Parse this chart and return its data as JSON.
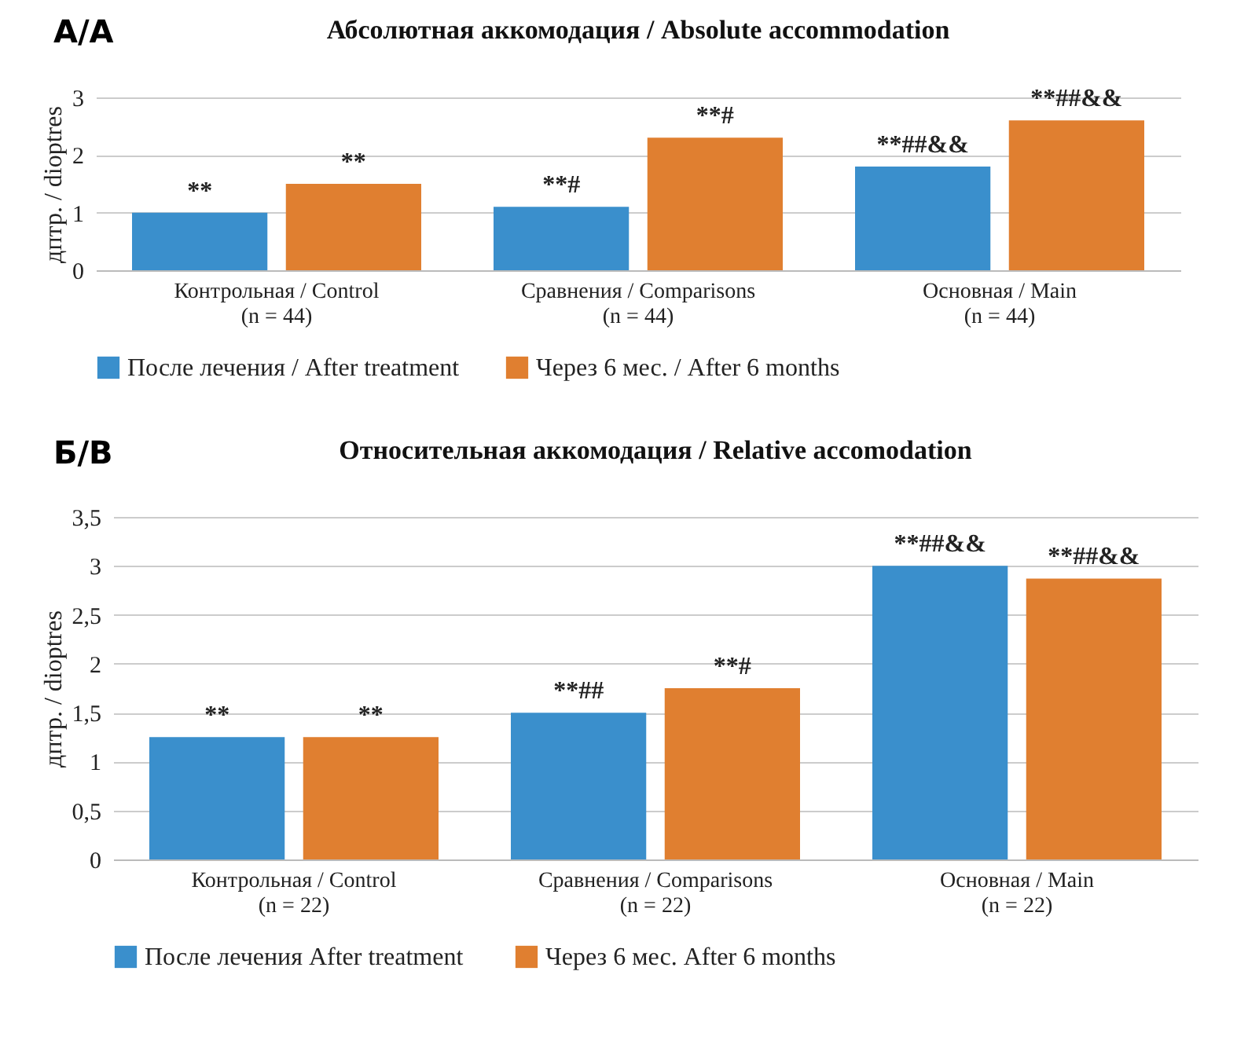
{
  "chart_data": [
    {
      "type": "bar",
      "title": "Абсолютная аккомодация / Absolute accommodation",
      "annotations": [
        "А/А"
      ],
      "ylabel": "дптр. / dioptres",
      "categories": [
        "Контрольная / Control\n(n = 44)",
        "Сравнения / Comparisons\n(n = 44)",
        "Основная / Main\n(n = 44)"
      ],
      "series": [
        {
          "name": "После лечения / After treatment",
          "color": "#3a8fcc",
          "values": [
            1.0,
            1.1,
            1.8
          ],
          "value_labels": [
            "**",
            "**#",
            "**##&&"
          ]
        },
        {
          "name": "Через 6 мес. / After 6 months",
          "color": "#e07f30",
          "values": [
            1.5,
            2.3,
            2.6
          ],
          "value_labels": [
            "**",
            "**#",
            "**##&&"
          ]
        }
      ],
      "ylim": [
        0,
        3
      ],
      "yticks": [
        0,
        1,
        2,
        3
      ],
      "grid": "y",
      "legend": "bottom"
    },
    {
      "type": "bar",
      "title": "Относительная аккомодация / Relative accomodation",
      "annotations": [
        "Б/В"
      ],
      "ylabel": "дптр. / dioptres",
      "categories": [
        "Контрольная / Control\n(n = 22)",
        "Сравнения / Comparisons\n(n = 22)",
        "Основная / Main\n(n = 22)"
      ],
      "series": [
        {
          "name": "После лечения  After treatment",
          "color": "#3a8fcc",
          "values": [
            1.25,
            1.5,
            3.0
          ],
          "value_labels": [
            "**",
            "**##",
            "**##&&"
          ]
        },
        {
          "name": "Через 6 мес.  After 6 months",
          "color": "#e07f30",
          "values": [
            1.25,
            1.75,
            2.87
          ],
          "value_labels": [
            "**",
            "**#",
            "**##&&"
          ]
        }
      ],
      "ylim": [
        0,
        3.5
      ],
      "yticks": [
        0,
        {
          "value": 0.5,
          "label": "0,5"
        },
        1,
        {
          "value": 1.5,
          "label": "1,5"
        },
        2,
        {
          "value": 2.5,
          "label": "2,5"
        },
        3,
        {
          "value": 3.5,
          "label": "3,5"
        }
      ],
      "grid": "y",
      "legend": "bottom"
    }
  ]
}
